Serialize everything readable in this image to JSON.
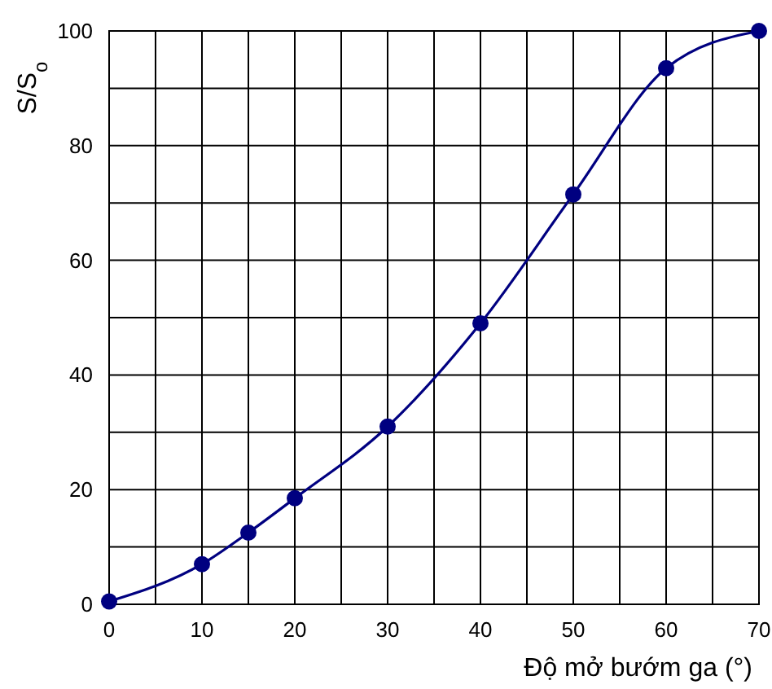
{
  "chart_data": {
    "type": "line",
    "xlabel": "Độ mở bướm ga (°)",
    "ylabel": "S/S$_{o}$",
    "x": [
      0,
      10,
      15,
      20,
      30,
      40,
      50,
      60,
      70
    ],
    "series": [
      {
        "color": "#000080",
        "values": [
          0.5,
          7,
          12.5,
          18.5,
          31,
          49,
          71.5,
          93.5,
          100
        ]
      }
    ],
    "xlim": [
      0,
      70
    ],
    "ylim": [
      0,
      100
    ],
    "xticks": [
      0,
      {
        "value": 5,
        "label": null
      },
      10,
      {
        "value": 15,
        "label": null
      },
      20,
      {
        "value": 25,
        "label": null
      },
      30,
      {
        "value": 35,
        "label": null
      },
      40,
      {
        "value": 45,
        "label": null
      },
      50,
      {
        "value": 55,
        "label": null
      },
      60,
      {
        "value": 65,
        "label": null
      },
      70
    ],
    "yticks": [
      0,
      {
        "value": 10,
        "label": null
      },
      20,
      {
        "value": 30,
        "label": null
      },
      40,
      {
        "value": 50,
        "label": null
      },
      60,
      {
        "value": 70,
        "label": null
      },
      80,
      {
        "value": 90,
        "label": null
      },
      100
    ],
    "grid": true,
    "marker": "circle",
    "line_style": "solid"
  }
}
